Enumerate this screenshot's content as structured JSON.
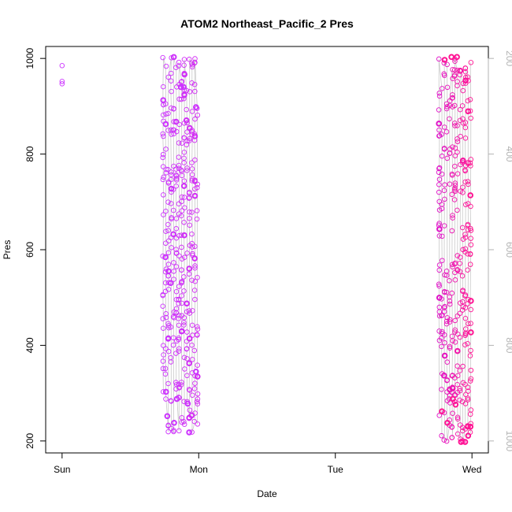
{
  "chart_data": {
    "type": "scatter",
    "title": "ATOM2 Northeast_Pacific_2 Pres",
    "xlabel": "Date",
    "ylabel": "Pres",
    "x_ticks": [
      "Sun",
      "Mon",
      "Tue",
      "Wed"
    ],
    "xlim_days": [
      -0.12,
      3.12
    ],
    "ylim": [
      175,
      1025
    ],
    "y_ticks": [
      200,
      400,
      600,
      800,
      1000
    ],
    "y2_ticks": [
      200,
      400,
      600,
      800,
      1000
    ],
    "y2_reversed": true,
    "y2_color": "#b3b3b3",
    "marker_color_early": "#cc33ff",
    "marker_color_late": "#ff1493",
    "line_color": "#c8c8c8",
    "series": [
      {
        "segment": "day0",
        "points": [
          [
            0.0,
            985
          ],
          [
            0.0,
            952
          ],
          [
            0.0,
            947
          ]
        ]
      },
      {
        "segment": "day1-cast",
        "x_start": 0.74,
        "x_end": 0.99,
        "note_min": 215,
        "note_max": 1005
      },
      {
        "segment": "day3-cast",
        "x_start": 2.76,
        "x_end": 2.99,
        "note_min": 197,
        "note_max": 1003
      }
    ]
  }
}
